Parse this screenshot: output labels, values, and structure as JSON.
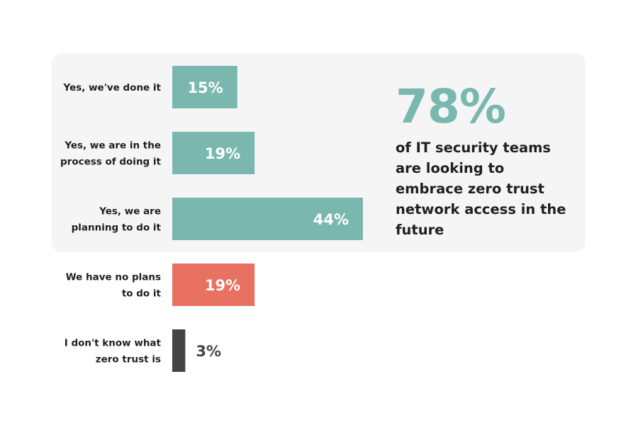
{
  "colors": {
    "teal": "#7ab8af",
    "coral": "#e87161",
    "dark": "#444444",
    "panel_bg": "#f5f5f5",
    "text": "#1f1f1f"
  },
  "callout": {
    "stat": "78%",
    "text": "of IT security teams are looking to embrace zero trust network access in the future"
  },
  "chart_data": {
    "type": "bar",
    "orientation": "horizontal",
    "title": "",
    "xlabel": "",
    "ylabel": "",
    "xlim": [
      0,
      44
    ],
    "grid": false,
    "legend": "none",
    "categories": [
      [
        "Yes, we've done it"
      ],
      [
        "Yes, we are in the",
        "process of doing it"
      ],
      [
        "Yes, we are",
        "planning to do it"
      ],
      [
        "We have no plans",
        "to do it"
      ],
      [
        "I don't know what",
        "zero trust is"
      ]
    ],
    "values": [
      15,
      19,
      44,
      19,
      3
    ],
    "value_labels": [
      "15%",
      "19%",
      "44%",
      "19%",
      "3%"
    ],
    "bar_colors": [
      "#7ab8af",
      "#7ab8af",
      "#7ab8af",
      "#e87161",
      "#444444"
    ]
  }
}
